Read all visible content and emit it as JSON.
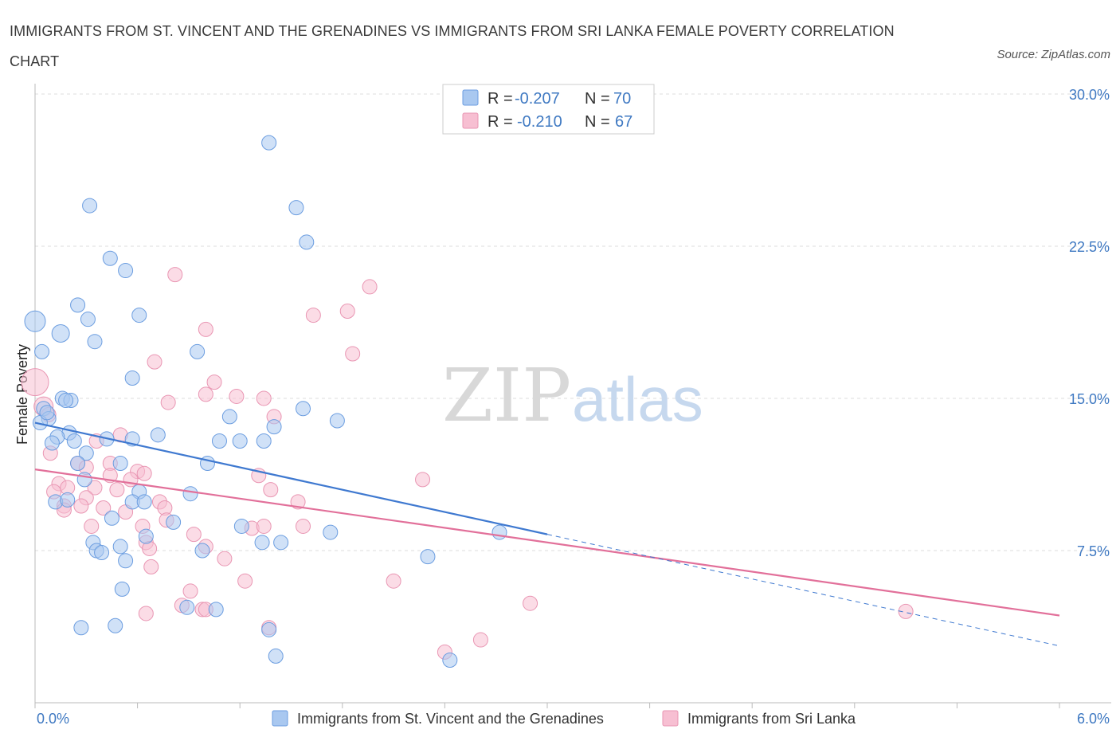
{
  "header": {
    "title": "IMMIGRANTS FROM ST. VINCENT AND THE GRENADINES VS IMMIGRANTS FROM SRI LANKA FEMALE POVERTY CORRELATION CHART",
    "source": "Source: ZipAtlas.com"
  },
  "watermark": {
    "part1": "ZIP",
    "part2": "atlas"
  },
  "legend": {
    "r_label": "R =",
    "n_label": "N =",
    "rows": [
      {
        "r": "-0.207",
        "n": "70"
      },
      {
        "r": "-0.210",
        "n": "67"
      }
    ]
  },
  "chart_data": {
    "type": "scatter",
    "title": "IMMIGRANTS FROM ST. VINCENT AND THE GRENADINES VS IMMIGRANTS FROM SRI LANKA FEMALE POVERTY CORRELATION CHART",
    "xlabel": "",
    "ylabel": "Female Poverty",
    "xlim": [
      0,
      6.0
    ],
    "ylim": [
      0,
      30.0
    ],
    "x_tick_labels": [
      "0.0%",
      "6.0%"
    ],
    "y_ticks": [
      7.5,
      15.0,
      22.5,
      30.0
    ],
    "y_tick_labels": [
      "7.5%",
      "15.0%",
      "22.5%",
      "30.0%"
    ],
    "grid": "horizontal dashed",
    "legend_position": "top-center",
    "colors": {
      "series1_fill": "#a9c8f0",
      "series1_stroke": "#6b9de0",
      "series1_line": "#3f79d0",
      "series2_fill": "#f7bfd2",
      "series2_stroke": "#e996b3",
      "series2_line": "#e2709a"
    },
    "series": [
      {
        "name": "Immigrants from St. Vincent and the Grenadines",
        "r": -0.207,
        "n": 70,
        "trend": {
          "x1": 0.0,
          "y1": 13.8,
          "x2": 3.0,
          "y2": 8.3,
          "dash_to_x": 6.0,
          "dash_to_y": 2.8
        },
        "points": [
          [
            0.0,
            18.8
          ],
          [
            0.04,
            17.3
          ],
          [
            0.15,
            18.2
          ],
          [
            0.25,
            19.6
          ],
          [
            0.31,
            18.9
          ],
          [
            0.35,
            17.8
          ],
          [
            0.32,
            24.5
          ],
          [
            0.44,
            21.9
          ],
          [
            0.53,
            21.3
          ],
          [
            0.61,
            19.1
          ],
          [
            0.57,
            16.0
          ],
          [
            0.95,
            17.3
          ],
          [
            1.37,
            27.6
          ],
          [
            1.53,
            24.4
          ],
          [
            1.59,
            22.7
          ],
          [
            0.05,
            14.5
          ],
          [
            0.08,
            14.0
          ],
          [
            0.03,
            13.8
          ],
          [
            0.16,
            15.0
          ],
          [
            0.21,
            14.9
          ],
          [
            0.18,
            14.9
          ],
          [
            0.07,
            14.3
          ],
          [
            0.2,
            13.3
          ],
          [
            0.13,
            13.1
          ],
          [
            0.1,
            12.8
          ],
          [
            0.23,
            12.9
          ],
          [
            0.3,
            12.3
          ],
          [
            0.25,
            11.8
          ],
          [
            0.42,
            13.0
          ],
          [
            0.57,
            13.0
          ],
          [
            0.72,
            13.2
          ],
          [
            1.08,
            12.9
          ],
          [
            1.14,
            14.1
          ],
          [
            1.2,
            12.9
          ],
          [
            1.34,
            12.9
          ],
          [
            1.4,
            13.6
          ],
          [
            1.57,
            14.5
          ],
          [
            1.77,
            13.9
          ],
          [
            0.29,
            11.0
          ],
          [
            0.5,
            11.8
          ],
          [
            0.61,
            10.4
          ],
          [
            0.57,
            9.9
          ],
          [
            0.64,
            9.9
          ],
          [
            0.91,
            10.3
          ],
          [
            1.01,
            11.8
          ],
          [
            0.12,
            9.9
          ],
          [
            0.19,
            10.0
          ],
          [
            0.45,
            9.1
          ],
          [
            0.65,
            8.2
          ],
          [
            0.81,
            8.9
          ],
          [
            1.21,
            8.7
          ],
          [
            1.33,
            7.9
          ],
          [
            1.44,
            7.9
          ],
          [
            1.73,
            8.4
          ],
          [
            0.34,
            7.9
          ],
          [
            0.36,
            7.5
          ],
          [
            0.39,
            7.4
          ],
          [
            0.5,
            7.7
          ],
          [
            0.53,
            7.0
          ],
          [
            0.98,
            7.5
          ],
          [
            0.51,
            5.6
          ],
          [
            0.89,
            4.7
          ],
          [
            0.27,
            3.7
          ],
          [
            0.47,
            3.8
          ],
          [
            1.37,
            3.6
          ],
          [
            1.41,
            2.3
          ],
          [
            2.3,
            7.2
          ],
          [
            2.43,
            2.1
          ],
          [
            2.72,
            8.4
          ],
          [
            1.06,
            4.6
          ]
        ]
      },
      {
        "name": "Immigrants from Sri Lanka",
        "r": -0.21,
        "n": 67,
        "trend": {
          "x1": 0.0,
          "y1": 11.5,
          "x2": 6.0,
          "y2": 4.3
        },
        "points": [
          [
            0.0,
            15.8
          ],
          [
            0.05,
            14.6
          ],
          [
            0.08,
            14.2
          ],
          [
            0.09,
            12.3
          ],
          [
            0.82,
            21.1
          ],
          [
            1.96,
            20.5
          ],
          [
            1.63,
            19.1
          ],
          [
            1.83,
            19.3
          ],
          [
            1.0,
            18.4
          ],
          [
            1.86,
            17.2
          ],
          [
            0.7,
            16.8
          ],
          [
            1.05,
            15.8
          ],
          [
            1.0,
            15.2
          ],
          [
            1.18,
            15.1
          ],
          [
            1.34,
            15.0
          ],
          [
            0.78,
            14.8
          ],
          [
            1.4,
            14.1
          ],
          [
            0.36,
            12.9
          ],
          [
            0.5,
            13.2
          ],
          [
            0.44,
            11.8
          ],
          [
            0.25,
            11.8
          ],
          [
            0.3,
            11.6
          ],
          [
            0.6,
            11.4
          ],
          [
            0.44,
            11.2
          ],
          [
            0.56,
            11.0
          ],
          [
            0.64,
            11.3
          ],
          [
            1.31,
            11.2
          ],
          [
            0.14,
            10.8
          ],
          [
            0.19,
            10.6
          ],
          [
            0.35,
            10.6
          ],
          [
            0.48,
            10.5
          ],
          [
            0.11,
            10.4
          ],
          [
            0.3,
            10.1
          ],
          [
            0.73,
            9.9
          ],
          [
            1.38,
            10.5
          ],
          [
            1.54,
            9.9
          ],
          [
            2.27,
            11.0
          ],
          [
            0.17,
            9.7
          ],
          [
            0.27,
            9.7
          ],
          [
            0.4,
            9.6
          ],
          [
            0.53,
            9.4
          ],
          [
            0.76,
            9.6
          ],
          [
            0.17,
            9.5
          ],
          [
            0.33,
            8.7
          ],
          [
            0.63,
            8.7
          ],
          [
            0.77,
            9.0
          ],
          [
            0.93,
            8.3
          ],
          [
            1.27,
            8.6
          ],
          [
            1.34,
            8.7
          ],
          [
            1.57,
            8.7
          ],
          [
            0.65,
            7.9
          ],
          [
            0.67,
            7.6
          ],
          [
            1.0,
            7.7
          ],
          [
            1.11,
            7.1
          ],
          [
            0.68,
            6.7
          ],
          [
            1.23,
            6.0
          ],
          [
            2.1,
            6.0
          ],
          [
            0.91,
            5.5
          ],
          [
            0.86,
            4.8
          ],
          [
            0.98,
            4.6
          ],
          [
            1.0,
            4.6
          ],
          [
            0.65,
            4.4
          ],
          [
            2.9,
            4.9
          ],
          [
            1.37,
            3.7
          ],
          [
            2.4,
            2.5
          ],
          [
            2.61,
            3.1
          ],
          [
            5.1,
            4.5
          ]
        ]
      }
    ]
  }
}
